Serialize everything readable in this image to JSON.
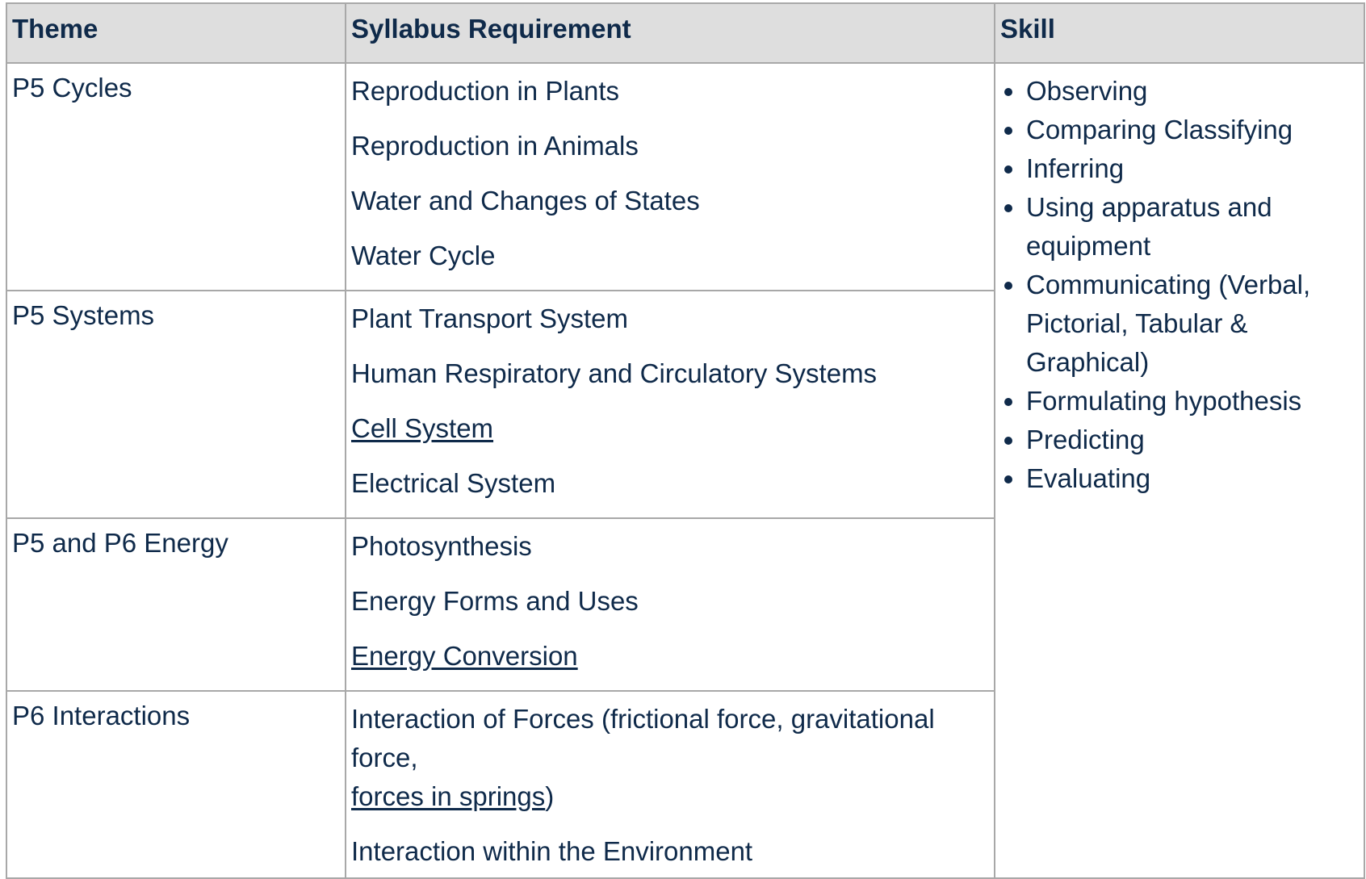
{
  "table": {
    "headers": {
      "theme": "Theme",
      "requirement": "Syllabus Requirement",
      "skill": "Skill"
    },
    "rows": [
      {
        "theme": "P5 Cycles",
        "requirements": [
          "Reproduction in Plants",
          "Reproduction in Animals",
          "Water and Changes of States",
          "Water Cycle"
        ]
      },
      {
        "theme": "P5 Systems",
        "requirements": [
          "Plant Transport System",
          "Human Respiratory and Circulatory Systems",
          "Cell System",
          "Electrical System"
        ]
      },
      {
        "theme": "P5 and P6 Energy",
        "requirements": [
          "Photosynthesis",
          "Energy Forms and Uses",
          "Energy Conversion"
        ]
      },
      {
        "theme": "P6 Interactions",
        "requirements": [
          "Interaction of Forces (frictional force, gravitational force,",
          "forces in springs",
          ")",
          "Interaction within the Environment"
        ]
      }
    ],
    "skills": [
      "Observing",
      "Comparing Classifying",
      "Inferring",
      "Using apparatus and equipment",
      "Communicating (Verbal, Pictorial, Tabular & Graphical)",
      "Formulating hypothesis",
      "Predicting",
      "Evaluating"
    ]
  }
}
